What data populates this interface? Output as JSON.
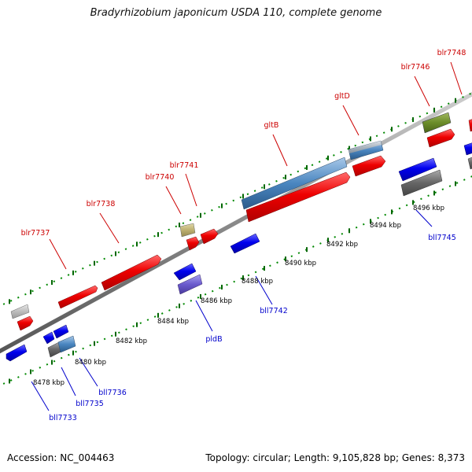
{
  "title": "Bradyrhizobium japonicum USDA 110, complete genome",
  "footer": {
    "accession": "Accession: NC_004463",
    "summary": "Topology: circular; Length: 9,105,828 bp; Genes: 8,373"
  },
  "colors": {
    "forward_label": "#cc0000",
    "reverse_label": "#0000cc",
    "backbone": "#808080",
    "tick": "#008800"
  },
  "kbp_labels": [
    "8478 kbp",
    "8480 kbp",
    "8482 kbp",
    "8484 kbp",
    "8486 kbp",
    "8488 kbp",
    "8490 kbp",
    "8492 kbp",
    "8494 kbp",
    "8496 kbp"
  ],
  "forward_genes": [
    {
      "name": "blr7737"
    },
    {
      "name": "blr7738"
    },
    {
      "name": "blr7740"
    },
    {
      "name": "blr7741"
    },
    {
      "name": "gltB"
    },
    {
      "name": "gltD"
    },
    {
      "name": "blr7746"
    },
    {
      "name": "blr7748"
    }
  ],
  "reverse_genes": [
    {
      "name": "bll7733"
    },
    {
      "name": "bll7735"
    },
    {
      "name": "bll7736"
    },
    {
      "name": "pldB"
    },
    {
      "name": "bll7742"
    },
    {
      "name": "bll7745"
    }
  ]
}
